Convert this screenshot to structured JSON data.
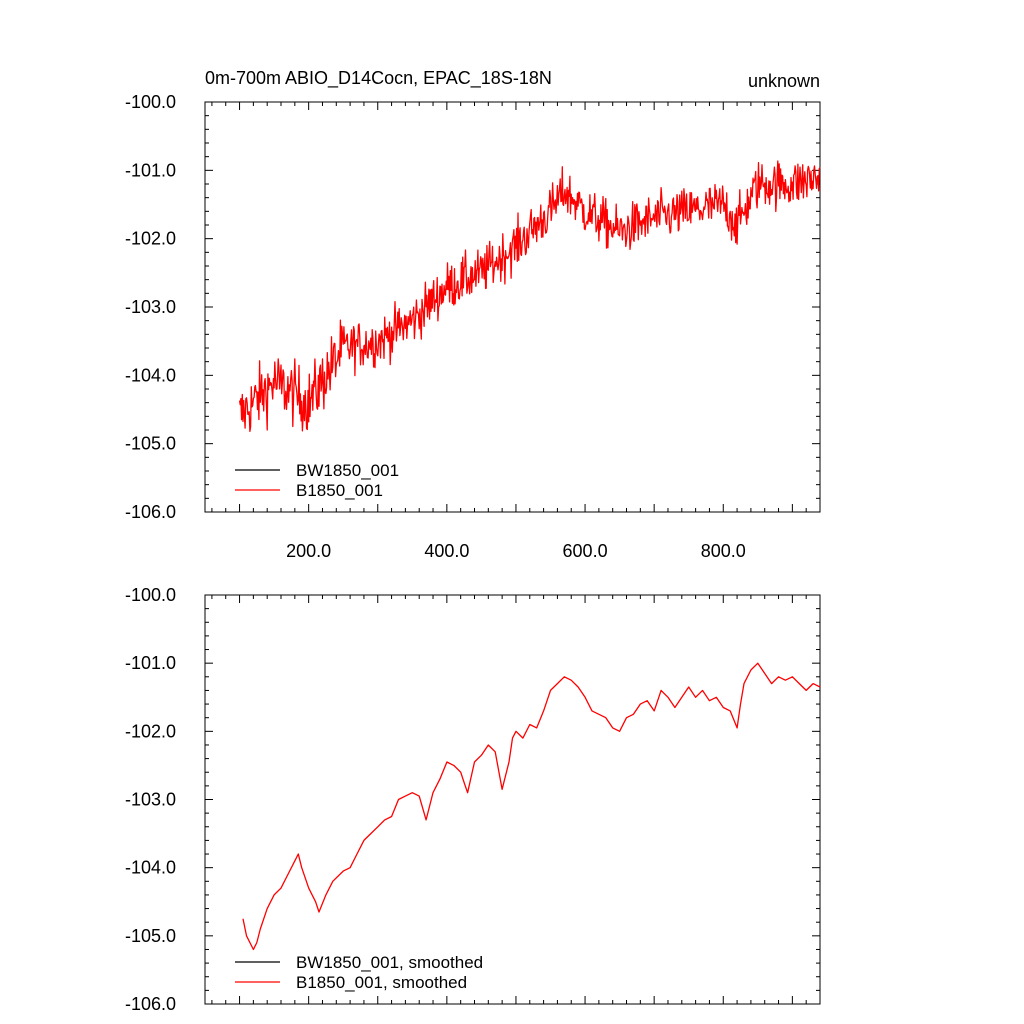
{
  "chart_data": [
    {
      "type": "line",
      "title": "0m-700m ABIO_D14Cocn, EPAC_18S-18N",
      "right_title": "unknown",
      "xlabel": "",
      "ylabel": "",
      "xlim": [
        50,
        940
      ],
      "ylim": [
        -106,
        -100
      ],
      "xticks": [
        200,
        400,
        600,
        800
      ],
      "xtick_labels": [
        "200.0",
        "400.0",
        "600.0",
        "800.0"
      ],
      "yticks": [
        -100,
        -101,
        -102,
        -103,
        -104,
        -105,
        -106
      ],
      "ytick_labels": [
        "-100.0",
        "-101.0",
        "-102.0",
        "-103.0",
        "-104.0",
        "-105.0",
        "-106.0"
      ],
      "grid": false,
      "legend_position": "bottom-left",
      "series": [
        {
          "name": "BW1850_001",
          "color": "#000000",
          "x": [],
          "y": []
        },
        {
          "name": "B1850_001",
          "color": "#ff0000",
          "x": [
            100,
            150,
            200,
            250,
            300,
            350,
            400,
            450,
            500,
            550,
            570,
            600,
            650,
            700,
            750,
            800,
            820,
            850,
            900,
            940
          ],
          "y": [
            -104.6,
            -104.1,
            -104.4,
            -103.6,
            -103.5,
            -103.2,
            -102.7,
            -102.5,
            -102.1,
            -101.6,
            -101.3,
            -101.6,
            -101.9,
            -101.7,
            -101.6,
            -101.5,
            -101.8,
            -101.2,
            -101.2,
            -101.1
          ]
        }
      ]
    },
    {
      "type": "line",
      "title": "",
      "xlabel": "",
      "ylabel": "",
      "xlim": [
        50,
        940
      ],
      "ylim": [
        -106,
        -100
      ],
      "xticks": [
        200,
        400,
        600,
        800
      ],
      "yticks": [
        -100,
        -101,
        -102,
        -103,
        -104,
        -105,
        -106
      ],
      "ytick_labels": [
        "-100.0",
        "-101.0",
        "-102.0",
        "-103.0",
        "-104.0",
        "-105.0",
        "-106.0"
      ],
      "grid": false,
      "legend_position": "bottom-left",
      "series": [
        {
          "name": "BW1850_001, smoothed",
          "color": "#000000",
          "x": [],
          "y": []
        },
        {
          "name": "B1850_001, smoothed",
          "color": "#ff0000",
          "x": [
            105,
            110,
            120,
            125,
            130,
            140,
            150,
            160,
            170,
            180,
            185,
            190,
            200,
            210,
            215,
            225,
            235,
            250,
            260,
            270,
            280,
            290,
            300,
            310,
            320,
            330,
            340,
            350,
            360,
            370,
            380,
            390,
            400,
            410,
            420,
            425,
            430,
            440,
            450,
            460,
            470,
            480,
            490,
            495,
            500,
            510,
            520,
            530,
            540,
            550,
            560,
            570,
            580,
            590,
            600,
            610,
            620,
            630,
            640,
            650,
            660,
            670,
            680,
            690,
            700,
            710,
            720,
            730,
            740,
            750,
            760,
            770,
            780,
            790,
            800,
            810,
            820,
            825,
            830,
            840,
            850,
            860,
            870,
            880,
            890,
            900,
            910,
            920,
            930,
            940
          ],
          "y": [
            -104.75,
            -105.0,
            -105.2,
            -105.1,
            -104.9,
            -104.6,
            -104.4,
            -104.3,
            -104.1,
            -103.9,
            -103.8,
            -104.0,
            -104.3,
            -104.5,
            -104.65,
            -104.4,
            -104.2,
            -104.05,
            -104.0,
            -103.8,
            -103.6,
            -103.5,
            -103.4,
            -103.3,
            -103.25,
            -103.0,
            -102.95,
            -102.9,
            -102.95,
            -103.3,
            -102.9,
            -102.7,
            -102.45,
            -102.5,
            -102.6,
            -102.75,
            -102.9,
            -102.45,
            -102.35,
            -102.2,
            -102.3,
            -102.85,
            -102.45,
            -102.1,
            -102.0,
            -102.1,
            -101.9,
            -101.95,
            -101.7,
            -101.4,
            -101.3,
            -101.2,
            -101.25,
            -101.35,
            -101.5,
            -101.7,
            -101.75,
            -101.8,
            -101.95,
            -102.0,
            -101.8,
            -101.75,
            -101.6,
            -101.55,
            -101.7,
            -101.4,
            -101.5,
            -101.65,
            -101.5,
            -101.35,
            -101.5,
            -101.4,
            -101.55,
            -101.5,
            -101.65,
            -101.7,
            -101.95,
            -101.6,
            -101.3,
            -101.1,
            -101.0,
            -101.15,
            -101.3,
            -101.2,
            -101.25,
            -101.2,
            -101.3,
            -101.4,
            -101.3,
            -101.35
          ]
        }
      ]
    }
  ]
}
